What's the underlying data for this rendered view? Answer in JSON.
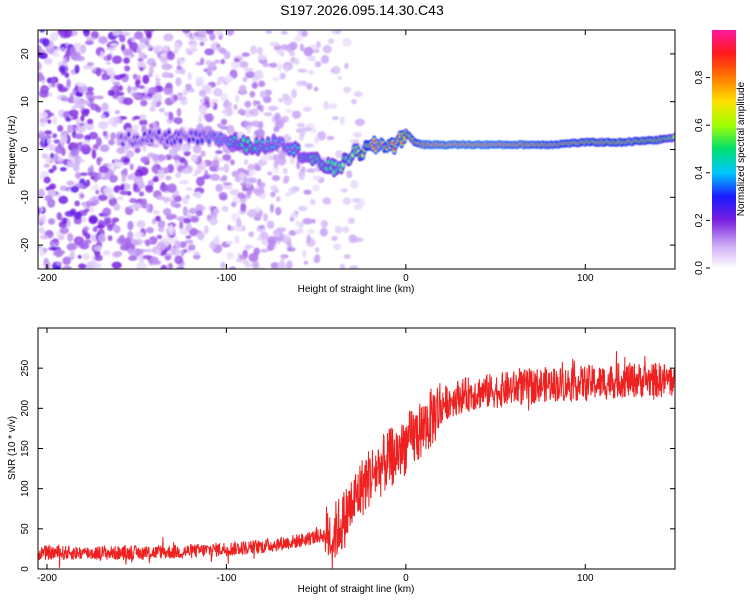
{
  "title": "S197.2026.095.14.30.C43",
  "chart_data": [
    {
      "type": "heatmap",
      "title": "S197.2026.095.14.30.C43",
      "xlabel": "Height of straight line (km)",
      "ylabel": "Frequency (Hz)",
      "xlim": [
        -205,
        150
      ],
      "ylim": [
        -25,
        25
      ],
      "xticks": [
        -200,
        -100,
        0,
        100
      ],
      "yticks": [
        -20,
        -10,
        0,
        10,
        20
      ],
      "colorbar": {
        "label": "Normalized spectral amplitude",
        "range": [
          0.0,
          1.0
        ],
        "ticks": [
          0.0,
          0.2,
          0.4,
          0.6,
          0.8
        ],
        "tick_labels": [
          "0.0",
          "0.2",
          "0.4",
          "0.6",
          "0.8"
        ],
        "colormap": [
          "#ffffff",
          "#c9a6f5",
          "#7a1fe0",
          "#1a1aff",
          "#00c8ff",
          "#00e070",
          "#a0ff00",
          "#ffe000",
          "#ff7a00",
          "#ff1a1a",
          "#ff1aa0"
        ]
      },
      "ridge": {
        "x": [
          -160,
          -140,
          -120,
          -100,
          -90,
          -80,
          -70,
          -60,
          -50,
          -40,
          -35,
          -30,
          -25,
          -20,
          -15,
          -10,
          -5,
          0,
          5,
          10,
          20,
          40,
          60,
          80,
          100,
          120,
          140,
          150
        ],
        "freq": [
          2.0,
          2.5,
          2.5,
          2.0,
          1.0,
          0.5,
          2.0,
          -0.5,
          -2.5,
          -4.0,
          -3.0,
          -1.0,
          -0.5,
          0.5,
          1.0,
          1.0,
          1.0,
          3.5,
          1.5,
          1.0,
          1.0,
          1.0,
          1.0,
          1.0,
          1.5,
          1.5,
          2.0,
          2.5
        ],
        "amplitude": [
          0.25,
          0.3,
          0.3,
          0.4,
          0.55,
          0.45,
          0.4,
          0.45,
          0.5,
          0.55,
          0.6,
          0.6,
          0.7,
          0.9,
          0.95,
          0.9,
          0.9,
          0.75,
          0.85,
          0.95,
          0.98,
          0.98,
          0.95,
          0.9,
          0.85,
          0.85,
          0.8,
          0.6
        ]
      }
    },
    {
      "type": "line",
      "xlabel": "Height of straight line (km)",
      "ylabel": "SNR (10 * v/v)",
      "xlim": [
        -205,
        150
      ],
      "ylim": [
        0,
        300
      ],
      "xticks": [
        -200,
        -100,
        0,
        100
      ],
      "yticks": [
        0,
        50,
        100,
        150,
        200,
        250
      ],
      "series": [
        {
          "name": "SNR",
          "color": "#ee2020",
          "x": [
            -205,
            -180,
            -150,
            -120,
            -100,
            -80,
            -60,
            -50,
            -40,
            -35,
            -30,
            -25,
            -20,
            -15,
            -10,
            -5,
            0,
            5,
            10,
            15,
            20,
            30,
            40,
            50,
            60,
            70,
            80,
            90,
            100,
            110,
            120,
            130,
            140,
            150
          ],
          "y": [
            20,
            20,
            20,
            22,
            25,
            28,
            35,
            40,
            45,
            60,
            80,
            100,
            115,
            125,
            135,
            145,
            155,
            165,
            175,
            190,
            205,
            215,
            220,
            222,
            225,
            228,
            230,
            230,
            232,
            232,
            235,
            235,
            235,
            235
          ]
        }
      ]
    }
  ]
}
